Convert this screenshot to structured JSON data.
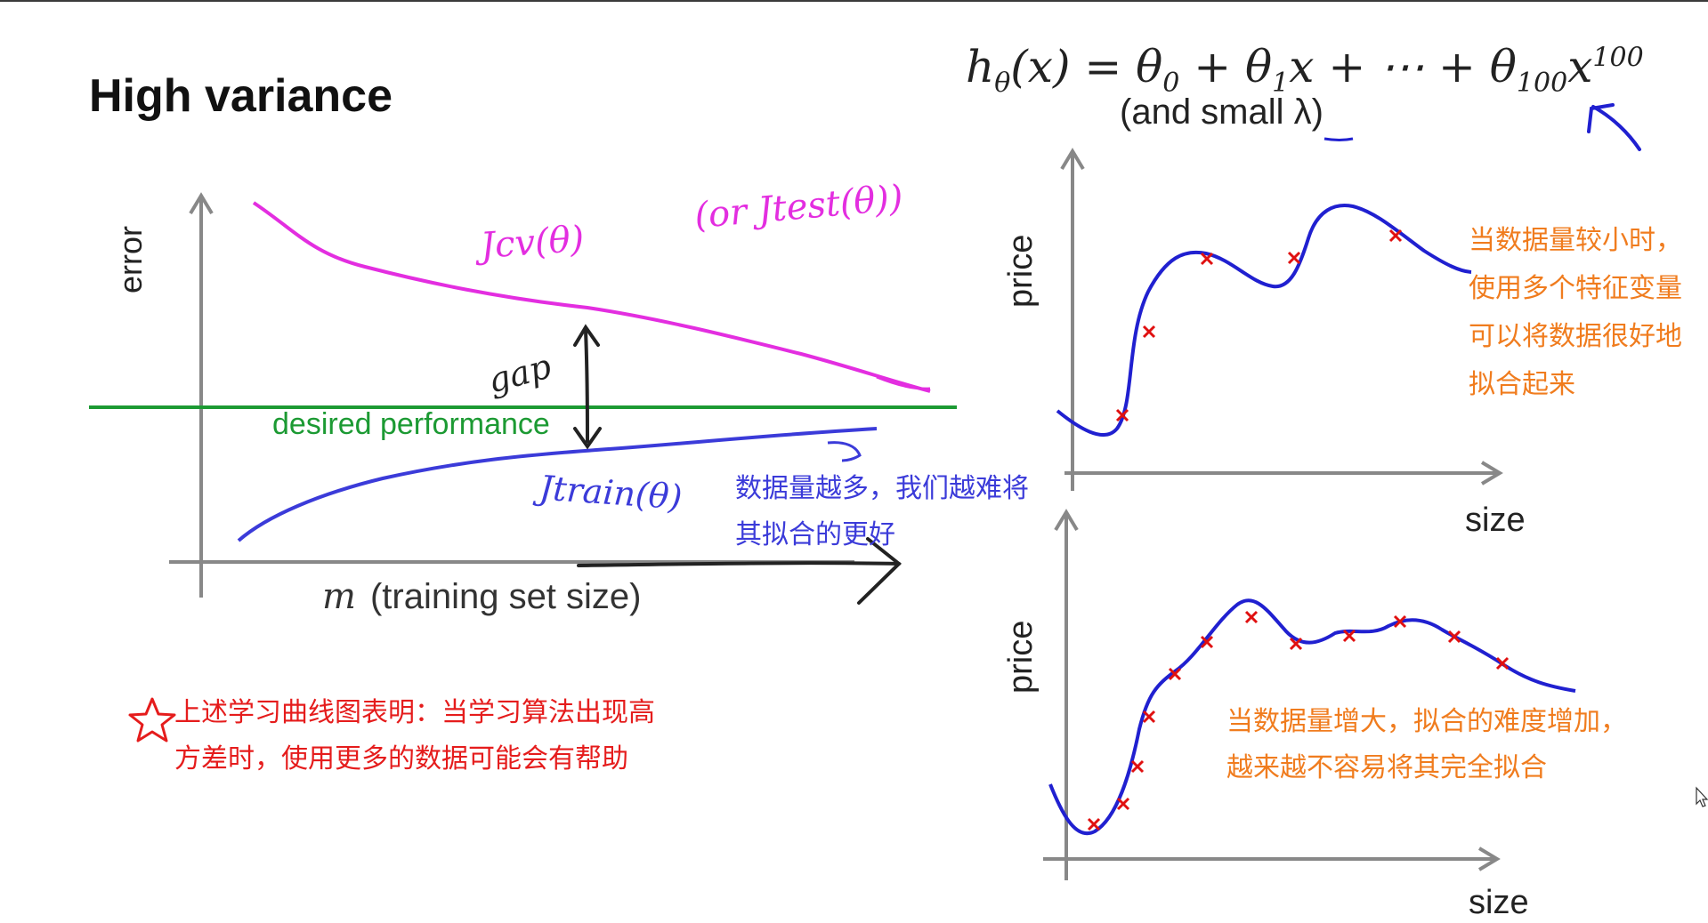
{
  "title": "High variance",
  "formula": {
    "text": "hθ(x) = θ0 + θ1x + ⋯ + θ100x^100",
    "note": "(and small λ)"
  },
  "learning_curve": {
    "ylabel": "error",
    "xlabel_symbol": "m",
    "xlabel_text": "(training set size)",
    "cv_label": "Jcv(θ)",
    "test_label": "(or Jtest(θ))",
    "train_label": "Jtrain(θ)",
    "gap_label": "gap",
    "desired_label": "desired performance"
  },
  "annotations": {
    "blue": [
      "数据量越多，我们越难将",
      "其拟合的更好"
    ],
    "red": [
      "上述学习曲线图表明：当学习算法出现高",
      "方差时，使用更多的数据可能会有帮助"
    ],
    "orange_top": [
      "当数据量较小时，",
      "使用多个特征变量",
      "可以将数据很好地",
      "拟合起来"
    ],
    "orange_bottom": [
      "当数据量增大，拟合的难度增加，",
      "越来越不容易将其完全拟合"
    ]
  },
  "plot_top": {
    "ylabel": "price",
    "xlabel": "size"
  },
  "plot_bottom": {
    "ylabel": "price",
    "xlabel": "size"
  },
  "colors": {
    "cv_curve": "#e32ee0",
    "train_curve": "#3b3bd9",
    "desired_line": "#1c9a33",
    "fit_curve": "#2020d0",
    "data_marker": "#e01010",
    "note_blue": "#3b3bd9",
    "note_red": "#e51c1c",
    "note_orange": "#f07c1e"
  }
}
